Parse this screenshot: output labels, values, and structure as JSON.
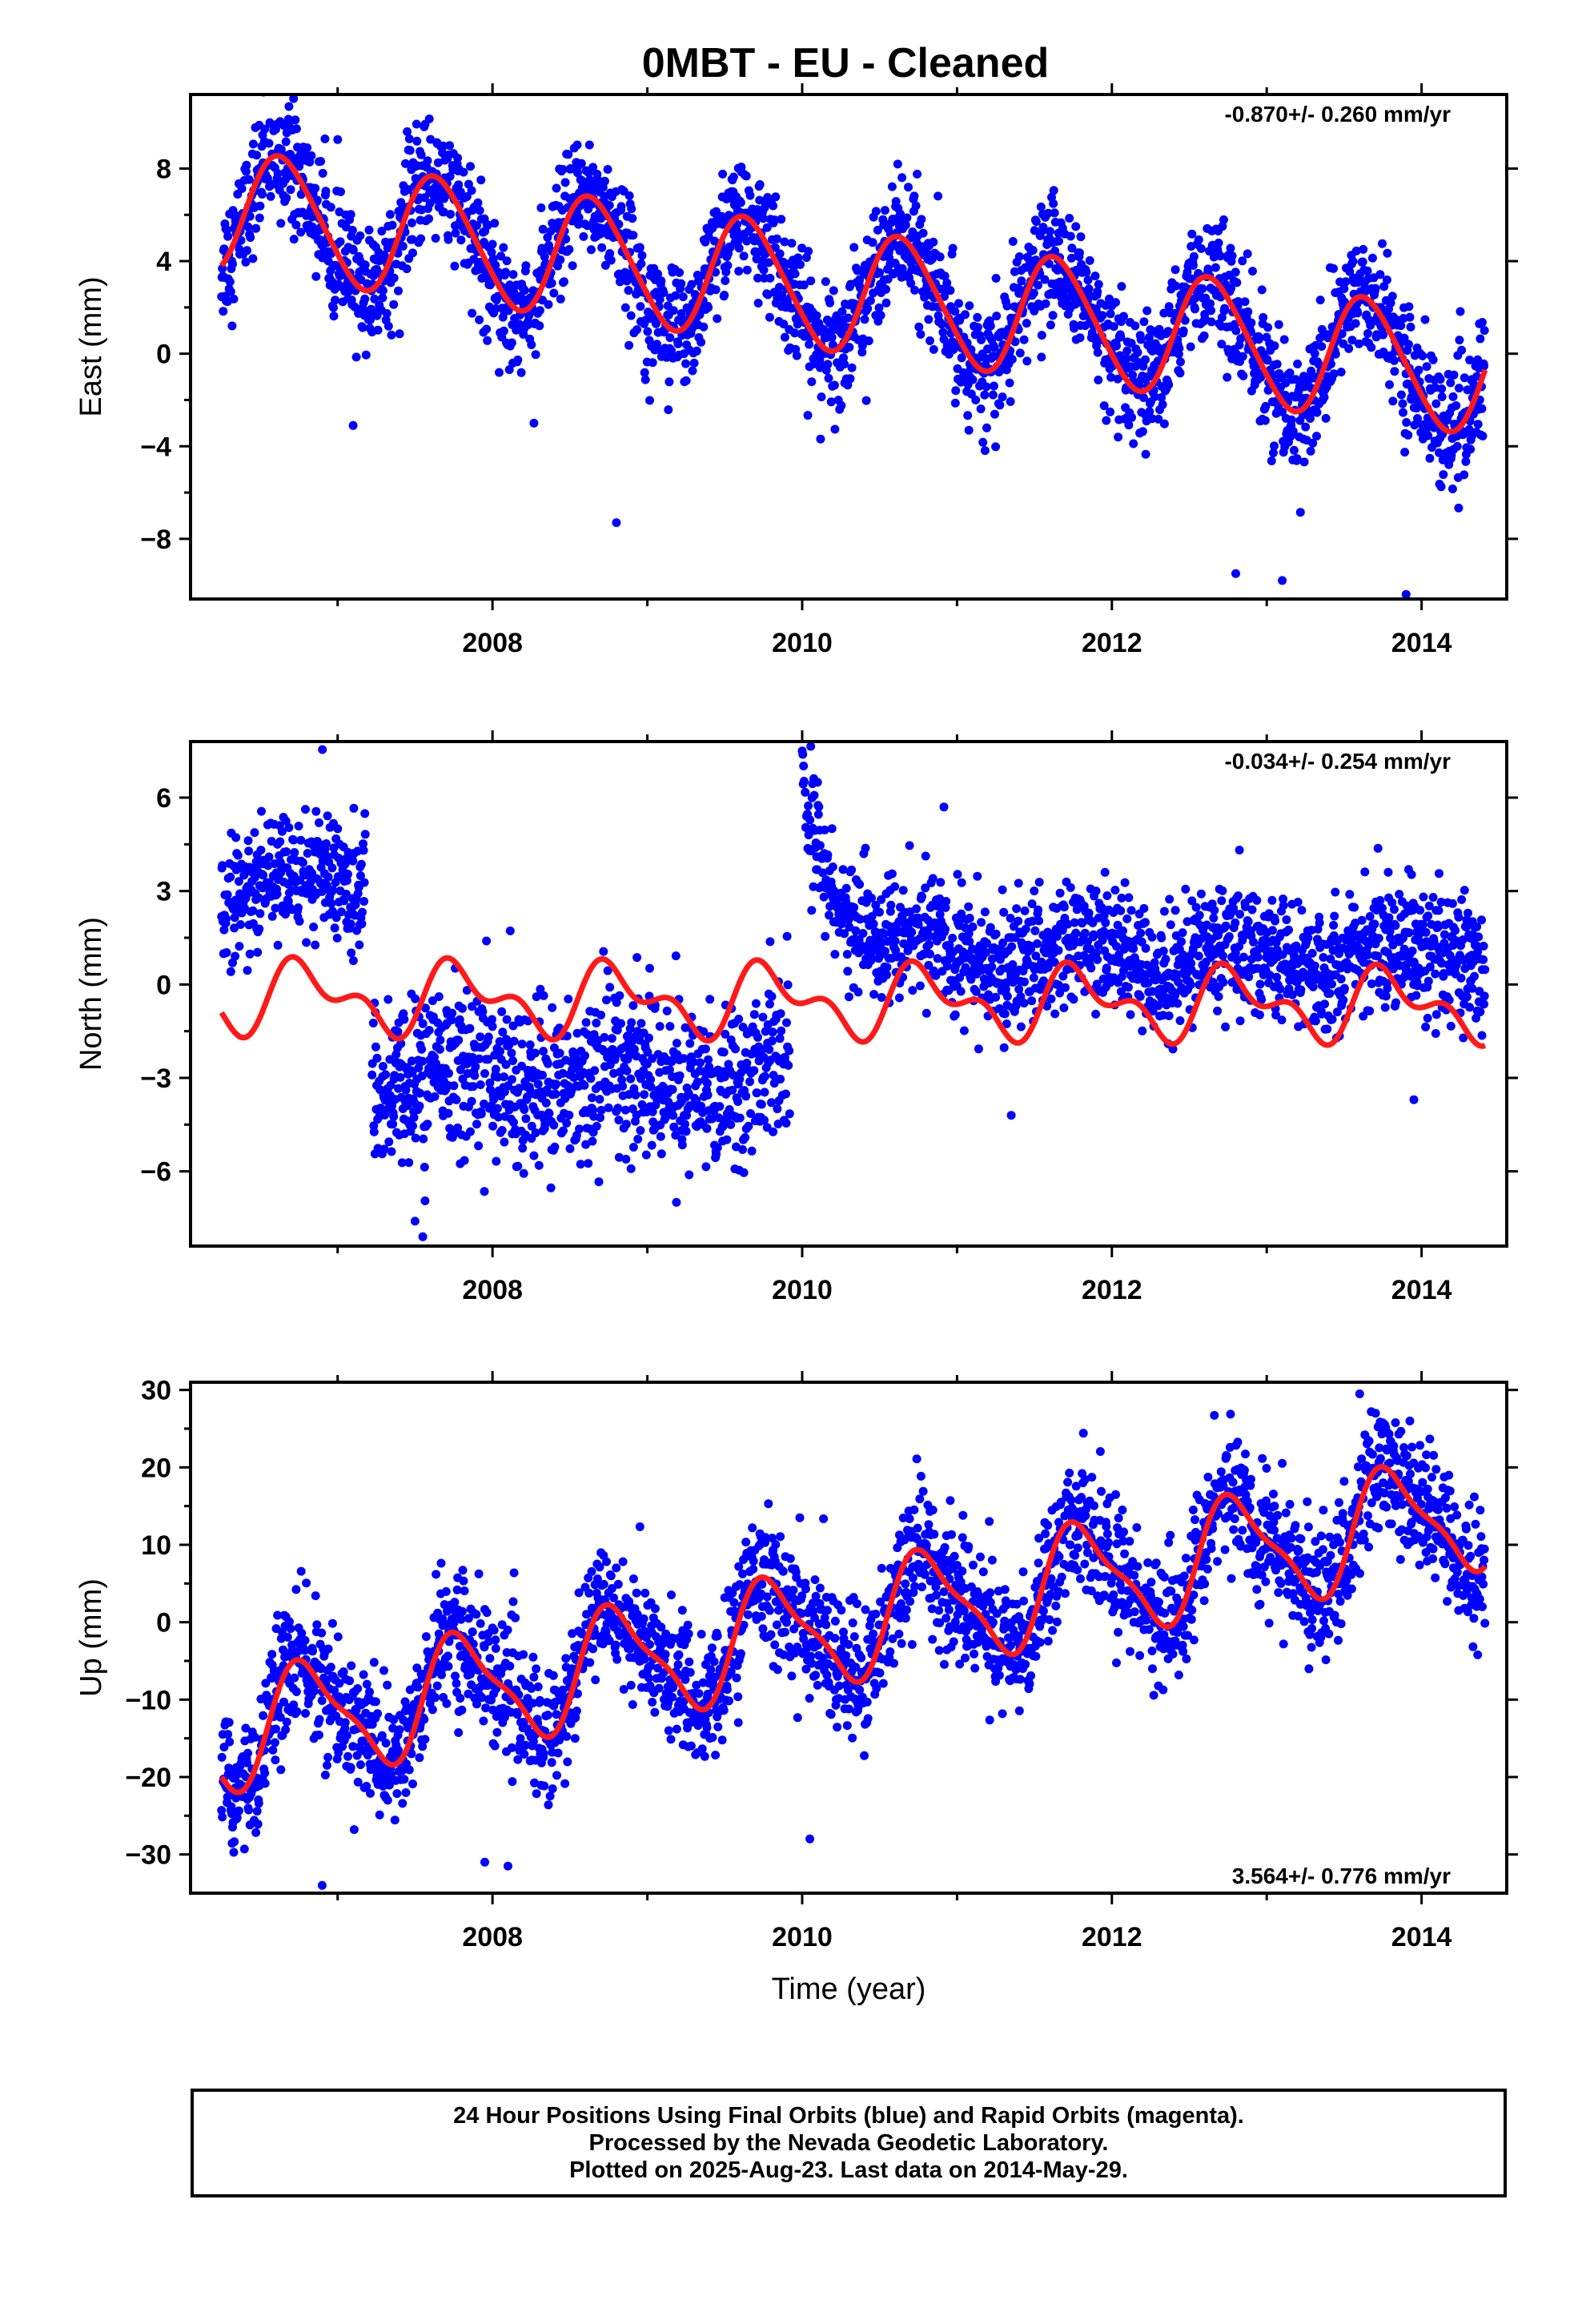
{
  "title": "0MBT  - EU - Cleaned",
  "colors": {
    "data": "#0000ff",
    "model": "#ff1a1a",
    "frame": "#000000"
  },
  "footer": {
    "line1": "24 Hour Positions Using Final Orbits (blue) and Rapid Orbits (magenta).",
    "line2": "Processed by the Nevada Geodetic Laboratory.",
    "line3": "Plotted on 2025-Aug-23. Last data on 2014-May-29."
  },
  "chart_data": [
    {
      "type": "scatter",
      "name": "east",
      "ylabel": "East (mm)",
      "xlabel": "",
      "xlim": [
        2006.05,
        2014.55
      ],
      "ylim": [
        -10.6,
        11.2
      ],
      "xticks": [
        2008,
        2010,
        2012,
        2014
      ],
      "yticks": [
        -8,
        -4,
        0,
        4,
        8
      ],
      "tick_labels": [
        "−8",
        "−4",
        "0",
        "4",
        "8"
      ],
      "rate_text": "-0.870+/- 0.260 mm/yr",
      "rate_position": "top-right",
      "x_range": [
        2006.25,
        2014.41
      ],
      "model": {
        "offset": 6.2,
        "trend": -0.87,
        "amp": 2.6,
        "phase_year": 2006.4,
        "amp2": 0.3,
        "jumps": []
      },
      "scatter_sd": 1.3,
      "outliers_x": [
        2007.1,
        2008.8,
        2012.8,
        2013.1,
        2013.9
      ],
      "outliers_y": [
        -3.1,
        -7.3,
        -9.5,
        -9.8,
        -10.4
      ]
    },
    {
      "type": "scatter",
      "name": "north",
      "ylabel": "North (mm)",
      "xlabel": "",
      "xlim": [
        2006.05,
        2014.55
      ],
      "ylim": [
        -8.4,
        7.8
      ],
      "xticks": [
        2008,
        2010,
        2012,
        2014
      ],
      "yticks": [
        -6,
        -3,
        0,
        3,
        6
      ],
      "tick_labels": [
        "−6",
        "−3",
        "0",
        "3",
        "6"
      ],
      "rate_text": "-0.034+/- 0.254 mm/yr",
      "rate_position": "top-right",
      "x_range": [
        2006.25,
        2014.41
      ],
      "model": {
        "offset": -0.4,
        "trend": -0.034,
        "amp": 0.9,
        "phase_year": 2006.55,
        "amp2": 0.6,
        "jumps": []
      },
      "data_segments": [
        {
          "start": 2006.25,
          "end": 2007.18,
          "level": 3.2,
          "sd": 1.1
        },
        {
          "start": 2007.22,
          "end": 2009.92,
          "level": -3.0,
          "sd": 1.3
        },
        {
          "start": 2010.0,
          "end": 2014.41,
          "level": 0.9,
          "sd": 1.0,
          "decay": 5.5,
          "decay_tau": 0.25
        }
      ],
      "scatter_sd": 1.1,
      "outliers_x": [
        2007.5,
        2007.55,
        2010.0,
        2011.35,
        2013.95
      ],
      "outliers_y": [
        -7.6,
        -8.1,
        7.5,
        -4.2,
        -3.7
      ]
    },
    {
      "type": "scatter",
      "name": "up",
      "ylabel": "Up (mm)",
      "xlabel": "Time (year)",
      "xlim": [
        2006.05,
        2014.55
      ],
      "ylim": [
        -35,
        31
      ],
      "xticks": [
        2008,
        2010,
        2012,
        2014
      ],
      "yticks": [
        -30,
        -20,
        -10,
        0,
        10,
        20,
        30
      ],
      "tick_labels": [
        "−30",
        "−20",
        "−10",
        "0",
        "10",
        "20",
        "30"
      ],
      "rate_text": "3.564+/- 0.776 mm/yr",
      "rate_position": "bottom-right",
      "x_range": [
        2006.25,
        2014.41
      ],
      "model": {
        "offset": -14.5,
        "trend": 3.564,
        "amp": 7.0,
        "phase_year": 2006.55,
        "amp2": 2.0,
        "jumps": []
      },
      "scatter_sd": 4.2,
      "outliers_x": [
        2006.9,
        2007.95,
        2008.1,
        2010.05,
        2013.6
      ],
      "outliers_y": [
        -34,
        -31,
        -31.5,
        -28,
        29.5
      ]
    }
  ]
}
